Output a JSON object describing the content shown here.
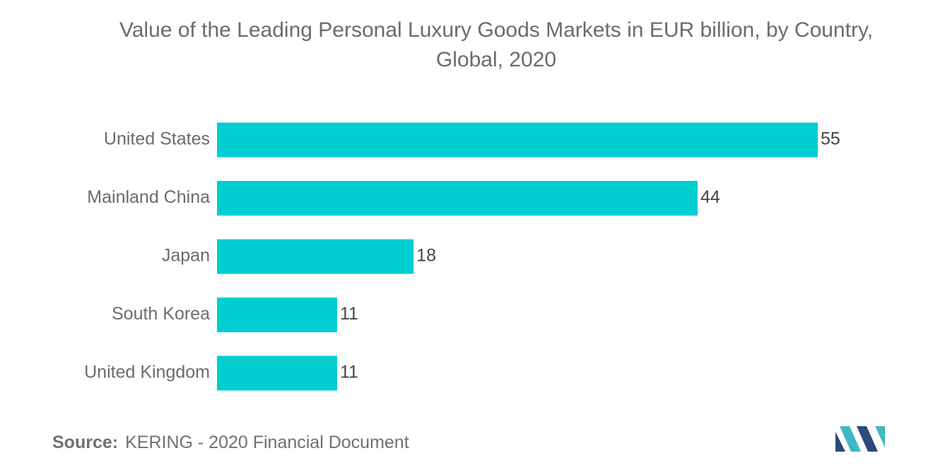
{
  "chart_data": {
    "type": "bar",
    "orientation": "horizontal",
    "title": "Value of the Leading Personal Luxury Goods Markets in EUR billion, by Country, Global, 2020",
    "title_lines": [
      "Value of the Leading Personal Luxury Goods Markets in EUR billion, by Country,",
      "Global, 2020"
    ],
    "categories": [
      "United States",
      "Mainland China",
      "Japan",
      "South Korea",
      "United Kingdom"
    ],
    "values": [
      55,
      44,
      18,
      11,
      11
    ],
    "xlabel": "",
    "ylabel": "",
    "xlim": [
      0,
      55
    ],
    "grid": false,
    "data_labels": true,
    "bar_color": "#00ced1"
  },
  "source": {
    "label": "Source:",
    "text": "KERING - 2020 Financial Document"
  },
  "colors": {
    "bar": "#00ced1",
    "text": "#6b6b6b",
    "logo_dark": "#2c4a7a",
    "logo_teal": "#3fb8c4"
  }
}
